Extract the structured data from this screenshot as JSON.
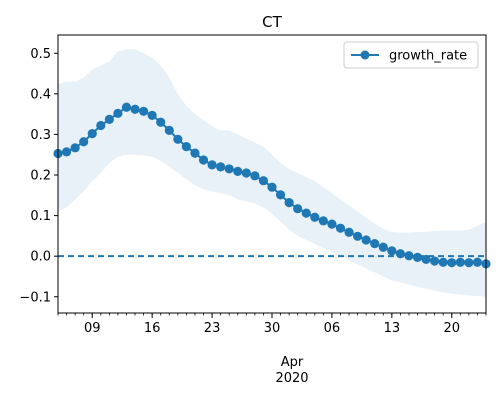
{
  "chart_data": {
    "type": "line",
    "title": "CT",
    "xlabel": "Apr\n2020",
    "ylabel": "",
    "x_start": "2020-03-05",
    "x_end": "2020-04-24",
    "xtick_labels": [
      "09",
      "16",
      "23",
      "30",
      "06",
      "13",
      "20"
    ],
    "xtick_dates": [
      "2020-03-09",
      "2020-03-16",
      "2020-03-23",
      "2020-03-30",
      "2020-04-06",
      "2020-04-13",
      "2020-04-20"
    ],
    "x_axis_month_label": "Apr",
    "x_axis_year_label": "2020",
    "ylim": [
      -0.14,
      0.545
    ],
    "yticks": [
      -0.1,
      0.0,
      0.1,
      0.2,
      0.3,
      0.4,
      0.5
    ],
    "ytick_labels": [
      "−0.1",
      "0.0",
      "0.1",
      "0.2",
      "0.3",
      "0.4",
      "0.5"
    ],
    "grid": false,
    "legend": {
      "position": "top-right",
      "entries": [
        "growth_rate"
      ]
    },
    "reference_line": {
      "y": 0.0,
      "style": "dashed"
    },
    "series": [
      {
        "name": "growth_rate",
        "color": "#1f77b4",
        "marker": "circle",
        "values": [
          0.253,
          0.257,
          0.267,
          0.282,
          0.302,
          0.322,
          0.337,
          0.352,
          0.367,
          0.362,
          0.357,
          0.347,
          0.33,
          0.31,
          0.288,
          0.27,
          0.254,
          0.237,
          0.225,
          0.22,
          0.215,
          0.209,
          0.205,
          0.198,
          0.186,
          0.17,
          0.151,
          0.132,
          0.117,
          0.106,
          0.096,
          0.087,
          0.079,
          0.069,
          0.059,
          0.049,
          0.04,
          0.031,
          0.022,
          0.013,
          0.006,
          0.001,
          -0.003,
          -0.008,
          -0.012,
          -0.015,
          -0.016,
          -0.015,
          -0.016,
          -0.015,
          -0.019
        ],
        "band_upper": [
          0.425,
          0.43,
          0.43,
          0.44,
          0.46,
          0.47,
          0.48,
          0.505,
          0.51,
          0.51,
          0.5,
          0.49,
          0.47,
          0.44,
          0.4,
          0.37,
          0.35,
          0.335,
          0.32,
          0.31,
          0.31,
          0.3,
          0.29,
          0.28,
          0.27,
          0.25,
          0.23,
          0.215,
          0.205,
          0.195,
          0.185,
          0.17,
          0.155,
          0.14,
          0.125,
          0.11,
          0.095,
          0.08,
          0.068,
          0.06,
          0.058,
          0.058,
          0.06,
          0.06,
          0.062,
          0.063,
          0.063,
          0.063,
          0.065,
          0.075,
          0.085
        ],
        "band_lower": [
          0.11,
          0.12,
          0.14,
          0.16,
          0.185,
          0.205,
          0.23,
          0.245,
          0.25,
          0.25,
          0.248,
          0.245,
          0.235,
          0.22,
          0.205,
          0.19,
          0.175,
          0.165,
          0.16,
          0.155,
          0.15,
          0.14,
          0.135,
          0.13,
          0.12,
          0.105,
          0.085,
          0.065,
          0.05,
          0.04,
          0.03,
          0.02,
          0.01,
          0.0,
          -0.01,
          -0.02,
          -0.03,
          -0.04,
          -0.05,
          -0.06,
          -0.065,
          -0.07,
          -0.075,
          -0.08,
          -0.085,
          -0.09,
          -0.092,
          -0.095,
          -0.097,
          -0.098,
          -0.1
        ]
      }
    ]
  }
}
